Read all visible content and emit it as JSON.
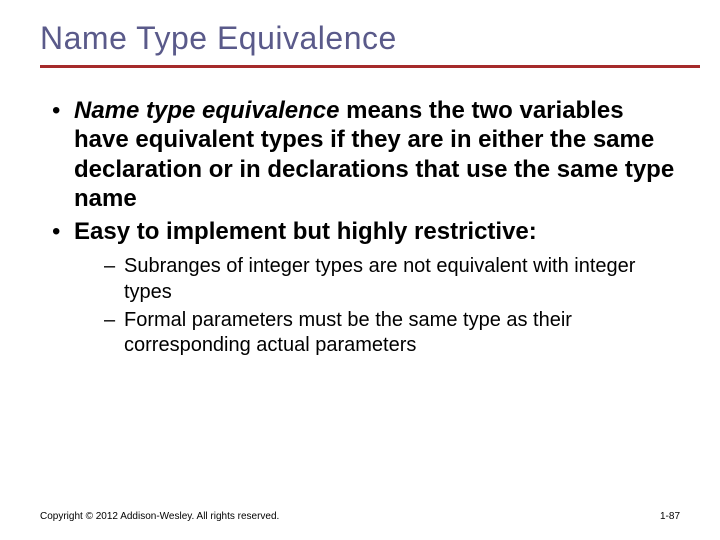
{
  "slide": {
    "title": "Name Type Equivalence",
    "title_color": "#5a5a8a",
    "title_fontsize": 32,
    "rule_color": "#a52a2a",
    "rule_height": 3,
    "background_color": "#ffffff",
    "body_text_color": "#000000",
    "bullets": [
      {
        "italic_term": "Name type equivalence",
        "rest": " means the two variables have equivalent types if they are in either the same declaration or in declarations that use the same type name"
      },
      {
        "text": "Easy to implement but highly restrictive:"
      }
    ],
    "sub_bullets": [
      "Subranges of integer types are not equivalent with integer types",
      "Formal parameters must be the same type as their corresponding actual parameters"
    ],
    "bullet_fontsize": 24,
    "sub_bullet_fontsize": 20,
    "footer": {
      "copyright": "Copyright © 2012 Addison-Wesley. All rights reserved.",
      "page": "1-87",
      "fontsize": 10
    }
  }
}
